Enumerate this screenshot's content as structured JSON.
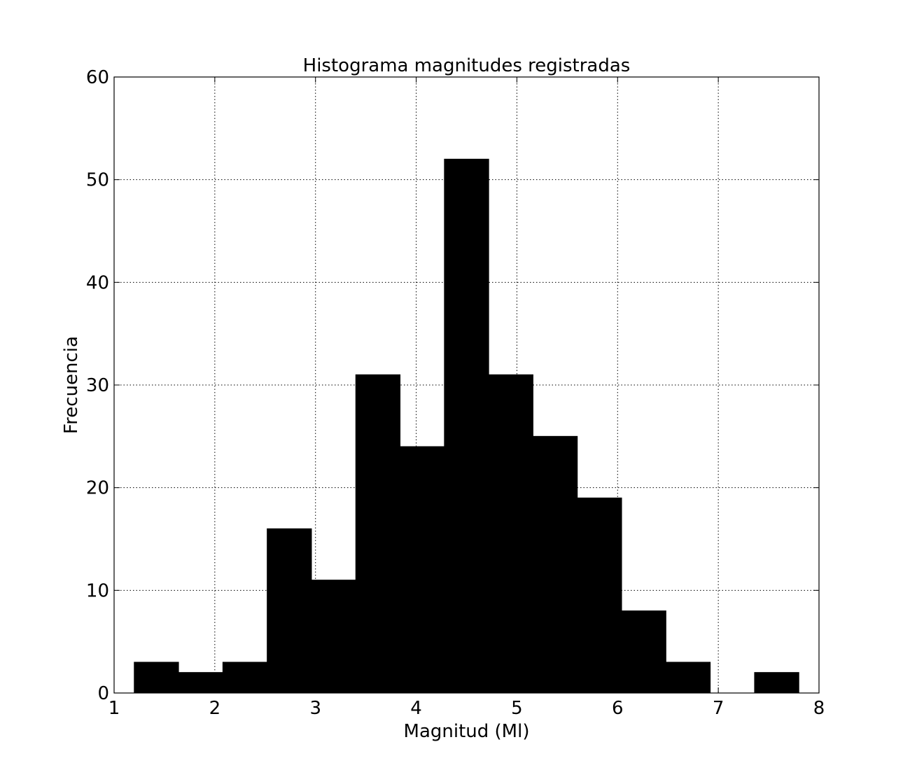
{
  "chart_data": {
    "type": "bar",
    "subtype": "histogram",
    "title": "Histograma magnitudes registradas",
    "xlabel": "Magnitud (Ml)",
    "ylabel": "Frecuencia",
    "xlim": [
      1,
      8
    ],
    "ylim": [
      0,
      60
    ],
    "xticks": [
      1,
      2,
      3,
      4,
      5,
      6,
      7,
      8
    ],
    "yticks": [
      0,
      10,
      20,
      30,
      40,
      50,
      60
    ],
    "grid": true,
    "bar_color": "#000000",
    "bins": [
      {
        "x0": 1.2,
        "x1": 1.64,
        "count": 3
      },
      {
        "x0": 1.64,
        "x1": 2.08,
        "count": 2
      },
      {
        "x0": 2.08,
        "x1": 2.52,
        "count": 3
      },
      {
        "x0": 2.52,
        "x1": 2.96,
        "count": 16
      },
      {
        "x0": 2.96,
        "x1": 3.4,
        "count": 11
      },
      {
        "x0": 3.4,
        "x1": 3.84,
        "count": 31
      },
      {
        "x0": 3.84,
        "x1": 4.28,
        "count": 24
      },
      {
        "x0": 4.28,
        "x1": 4.72,
        "count": 52
      },
      {
        "x0": 4.72,
        "x1": 5.16,
        "count": 31
      },
      {
        "x0": 5.16,
        "x1": 5.6,
        "count": 25
      },
      {
        "x0": 5.6,
        "x1": 6.04,
        "count": 19
      },
      {
        "x0": 6.04,
        "x1": 6.48,
        "count": 8
      },
      {
        "x0": 6.48,
        "x1": 6.92,
        "count": 3
      },
      {
        "x0": 6.92,
        "x1": 7.36,
        "count": 0
      },
      {
        "x0": 7.36,
        "x1": 7.8,
        "count": 2
      }
    ]
  }
}
